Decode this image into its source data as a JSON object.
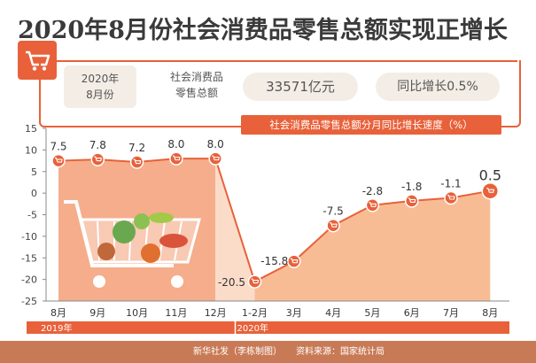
{
  "header": {
    "title": "2020年8月份社会消费品零售总额实现正增长",
    "period_line1": "2020年",
    "period_line2": "8月份",
    "metric_label_line1": "社会消费品",
    "metric_label_line2": "零售总额",
    "metric_value": "33571亿元",
    "yoy_label": "同比增长0.5%"
  },
  "chart_data": {
    "type": "area",
    "title": "社会消费品零售总额分月同比增长速度（%）",
    "categories": [
      "8月",
      "9月",
      "10月",
      "11月",
      "12月",
      "1-2月",
      "3月",
      "4月",
      "5月",
      "6月",
      "7月",
      "8月"
    ],
    "values": [
      7.5,
      7.8,
      7.2,
      8.0,
      8.0,
      -20.5,
      -15.8,
      -7.5,
      -2.8,
      -1.8,
      -1.1,
      0.5
    ],
    "value_labels": [
      "7.5",
      "7.8",
      "7.2",
      "8.0",
      "8.0",
      "-20.5",
      "-15.8",
      "-7.5",
      "-2.8",
      "-1.8",
      "-1.1",
      "0.5"
    ],
    "year_groups": [
      {
        "label": "2019年",
        "start": 0,
        "end": 4
      },
      {
        "label": "2020年",
        "start": 5,
        "end": 11
      }
    ],
    "ylim": [
      -25,
      15
    ],
    "yticks": [
      15,
      10,
      5,
      0,
      -5,
      -10,
      -15,
      -20,
      -25
    ],
    "colors": {
      "line": "#e8613a",
      "marker_fill": "#e8613a",
      "area_2019": "#f4a47e",
      "area_2020": "#f7b58a",
      "axis_band": "#e8613a"
    },
    "grid": false,
    "legend": "none"
  },
  "footer": {
    "credit": "新华社发（李栋制图）",
    "source": "资料来源：国家统计局"
  }
}
